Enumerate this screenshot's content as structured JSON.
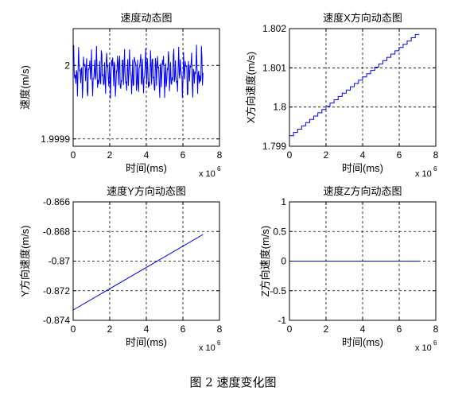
{
  "figure": {
    "caption": "图 2  速度变化图"
  },
  "chart_data": [
    {
      "type": "line",
      "title": "速度动态图",
      "xlabel": "时间(ms)",
      "ylabel": "速度(m/s)",
      "x_multiplier": "x 10",
      "x_multiplier_exp": "6",
      "xlim": [
        0,
        8
      ],
      "ylim": [
        1.99989,
        2.00005
      ],
      "x_ticks": [
        0,
        2,
        4,
        6,
        8
      ],
      "x_tick_labels": [
        "0",
        "2",
        "4",
        "6",
        "8"
      ],
      "y_ticks": [
        1.9999,
        2.0
      ],
      "y_tick_labels": [
        "1.9999",
        "2"
      ],
      "grid": true,
      "color": "#0000ff",
      "series": [
        {
          "oscillating": true,
          "x_range": [
            0,
            7.1
          ],
          "center": 1.99999,
          "amplitude": 3.5e-05,
          "cycles": 40
        }
      ]
    },
    {
      "type": "line",
      "title": "速度X方向动态图",
      "xlabel": "时间(ms)",
      "ylabel": "X方向速度(m/s)",
      "x_multiplier": "x 10",
      "x_multiplier_exp": "6",
      "xlim": [
        0,
        8
      ],
      "ylim": [
        1.799,
        1.802
      ],
      "x_ticks": [
        0,
        2,
        4,
        6,
        8
      ],
      "x_tick_labels": [
        "0",
        "2",
        "4",
        "6",
        "8"
      ],
      "y_ticks": [
        1.799,
        1.8,
        1.801,
        1.802
      ],
      "y_tick_labels": [
        "1.799",
        "1.8",
        "1.801",
        "1.802"
      ],
      "grid": true,
      "color": "#0000ff",
      "series": [
        {
          "staircase": true,
          "x": [
            0,
            7.1
          ],
          "y": [
            1.79927,
            1.80185
          ],
          "steps": 32
        }
      ]
    },
    {
      "type": "line",
      "title": "速度Y方向动态图",
      "xlabel": "时间(ms)",
      "ylabel": "Y方向速度(m/s)",
      "x_multiplier": "x 10",
      "x_multiplier_exp": "6",
      "xlim": [
        0,
        8
      ],
      "ylim": [
        -0.874,
        -0.866
      ],
      "x_ticks": [
        0,
        2,
        4,
        6,
        8
      ],
      "x_tick_labels": [
        "0",
        "2",
        "4",
        "6",
        "8"
      ],
      "y_ticks": [
        -0.874,
        -0.872,
        -0.87,
        -0.868,
        -0.866
      ],
      "y_tick_labels": [
        "-0.874",
        "-0.872",
        "-0.87",
        "-0.868",
        "-0.866"
      ],
      "grid": true,
      "color": "#0000ff",
      "series": [
        {
          "x": [
            0,
            7.1
          ],
          "y": [
            -0.8733,
            -0.8682
          ]
        }
      ]
    },
    {
      "type": "line",
      "title": "速度Z方向动态图",
      "xlabel": "时间(ms)",
      "ylabel": "Z方向速度(m/s)",
      "x_multiplier": "x 10",
      "x_multiplier_exp": "6",
      "xlim": [
        0,
        8
      ],
      "ylim": [
        -1,
        1
      ],
      "x_ticks": [
        0,
        2,
        4,
        6,
        8
      ],
      "x_tick_labels": [
        "0",
        "2",
        "4",
        "6",
        "8"
      ],
      "y_ticks": [
        -1,
        -0.5,
        0,
        0.5,
        1
      ],
      "y_tick_labels": [
        "-1",
        "-0.5",
        "0",
        "0.5",
        "1"
      ],
      "grid": true,
      "color": "#0000ff",
      "series": [
        {
          "x": [
            0,
            7.1
          ],
          "y": [
            0,
            0
          ]
        }
      ]
    }
  ]
}
